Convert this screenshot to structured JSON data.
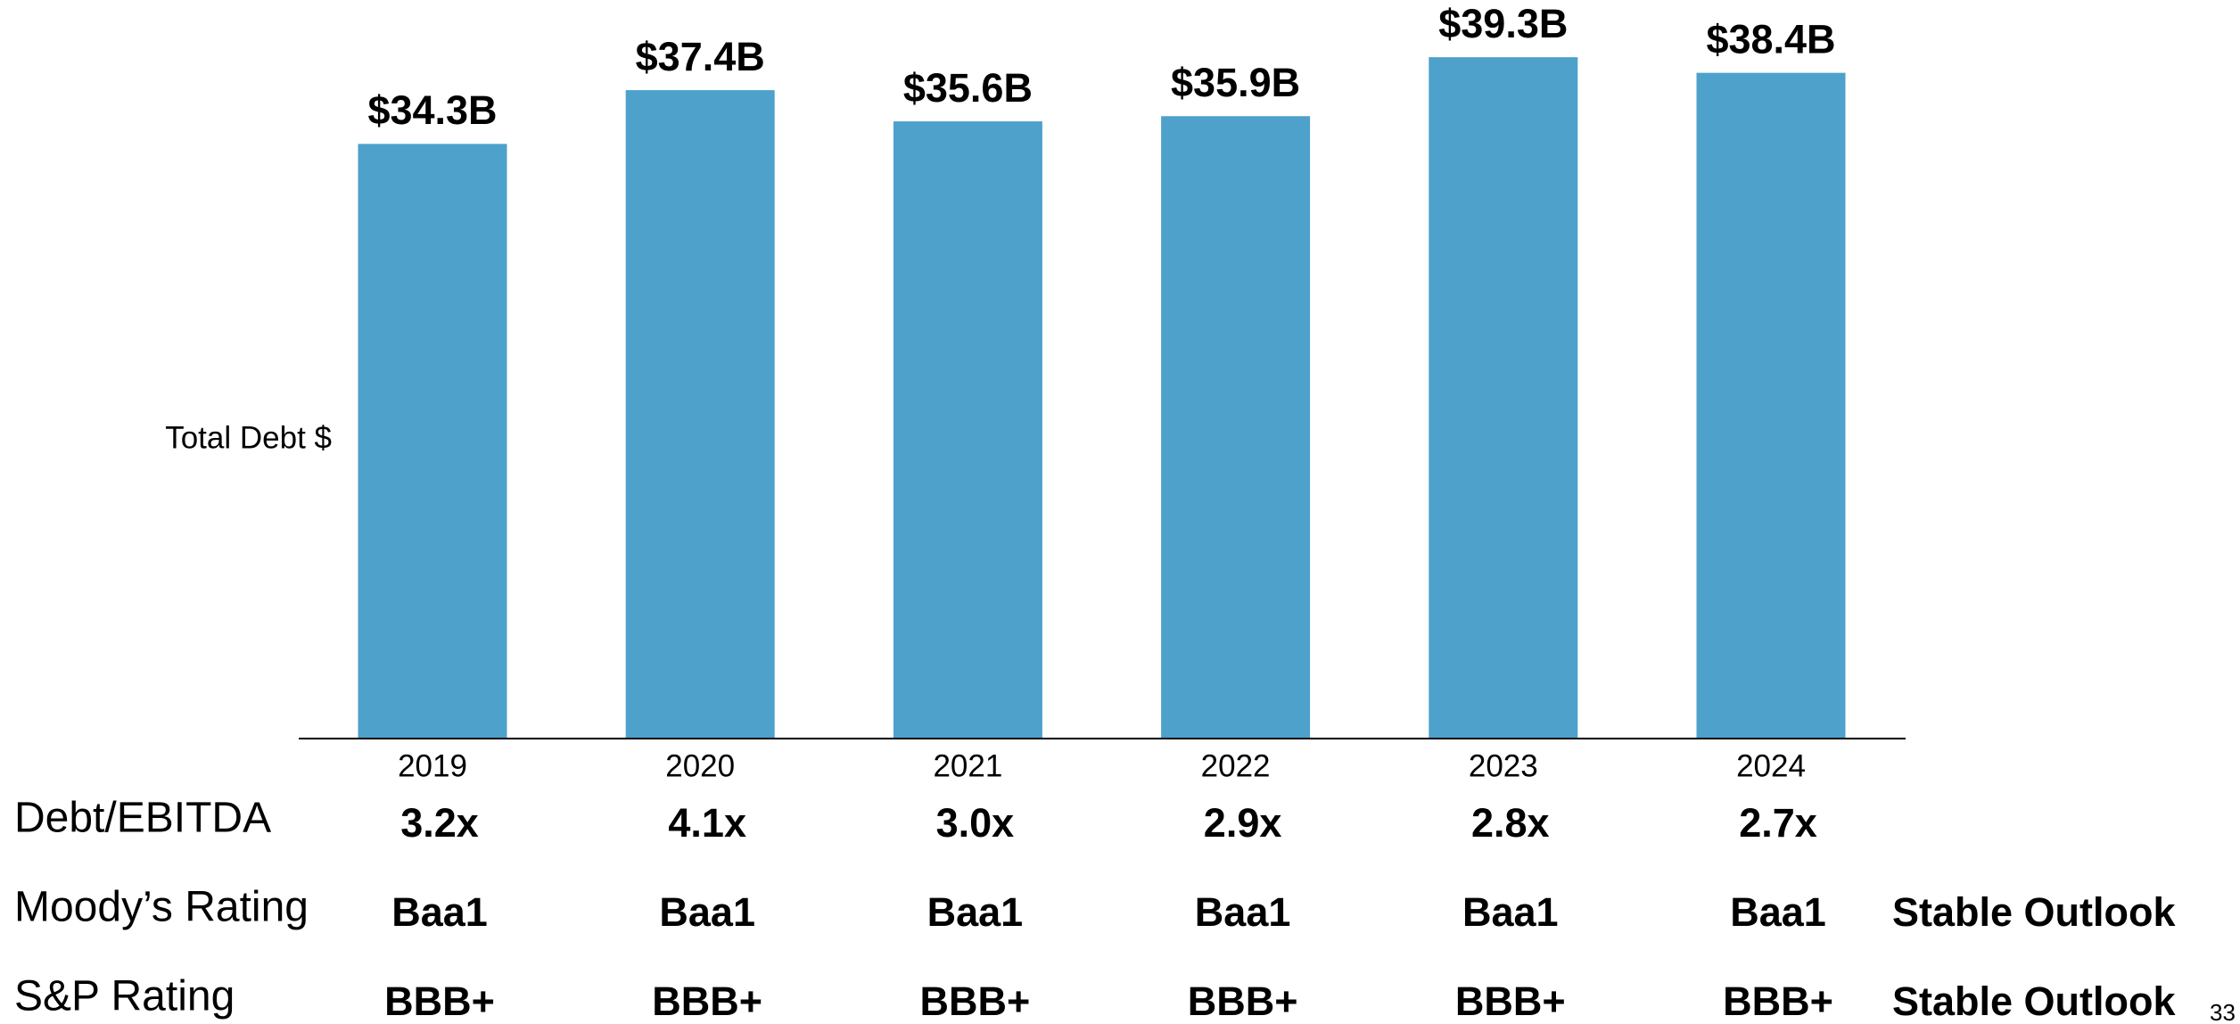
{
  "chart_data": {
    "type": "bar",
    "y_label": "Total Debt $",
    "categories": [
      "2019",
      "2020",
      "2021",
      "2022",
      "2023",
      "2024"
    ],
    "values": [
      34.3,
      37.4,
      35.6,
      35.9,
      39.3,
      38.4
    ],
    "value_labels": [
      "$34.3B",
      "$37.4B",
      "$35.6B",
      "$35.9B",
      "$39.3B",
      "$38.4B"
    ],
    "color": "#4ea1cb",
    "ylim": [
      0,
      42.6
    ]
  },
  "table": {
    "rows": [
      {
        "label": "Debt/EBITDA",
        "values": [
          "3.2x",
          "4.1x",
          "3.0x",
          "2.9x",
          "2.8x",
          "2.7x"
        ]
      },
      {
        "label": "Moody’s Rating",
        "values": [
          "Baa1",
          "Baa1",
          "Baa1",
          "Baa1",
          "Baa1",
          "Baa1"
        ],
        "note": "Stable Outlook"
      },
      {
        "label": "S&P Rating",
        "values": [
          "BBB+",
          "BBB+",
          "BBB+",
          "BBB+",
          "BBB+",
          "BBB+"
        ],
        "note": "Stable Outlook"
      }
    ]
  },
  "page_number": "33"
}
